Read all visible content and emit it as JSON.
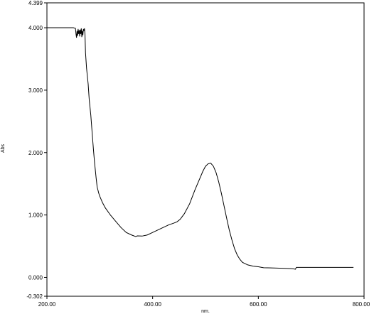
{
  "chart_data": {
    "type": "line",
    "title": "",
    "xlabel": "nm.",
    "ylabel": "Abs",
    "xlim": [
      200.0,
      800.0
    ],
    "ylim": [
      -0.302,
      4.399
    ],
    "x_ticks": [
      {
        "value": 200,
        "label": "200.00"
      },
      {
        "value": 400,
        "label": "400.00"
      },
      {
        "value": 600,
        "label": "600.00"
      },
      {
        "value": 800,
        "label": "800.00"
      }
    ],
    "y_ticks": [
      {
        "value": -0.302,
        "label": "-0.302"
      },
      {
        "value": 0.0,
        "label": "0.000"
      },
      {
        "value": 1.0,
        "label": "1.000"
      },
      {
        "value": 2.0,
        "label": "2.000"
      },
      {
        "value": 3.0,
        "label": "3.000"
      },
      {
        "value": 4.0,
        "label": "4.000"
      },
      {
        "value": 4.399,
        "label": "4.399"
      }
    ],
    "grid": false,
    "series": [
      {
        "color": "#000000",
        "points": [
          [
            200,
            4.0
          ],
          [
            250,
            4.0
          ],
          [
            254,
            3.99
          ],
          [
            255,
            3.9
          ],
          [
            256,
            3.84
          ],
          [
            257,
            3.95
          ],
          [
            258,
            3.87
          ],
          [
            259,
            3.98
          ],
          [
            260,
            3.9
          ],
          [
            261,
            3.96
          ],
          [
            262,
            3.86
          ],
          [
            263,
            3.97
          ],
          [
            264,
            3.9
          ],
          [
            265,
            3.99
          ],
          [
            266,
            3.85
          ],
          [
            267,
            3.95
          ],
          [
            268,
            3.88
          ],
          [
            269,
            3.98
          ],
          [
            270,
            3.95
          ],
          [
            271,
            3.99
          ],
          [
            272,
            3.9
          ],
          [
            273,
            3.6
          ],
          [
            275,
            3.35
          ],
          [
            278,
            3.1
          ],
          [
            280,
            2.85
          ],
          [
            283,
            2.6
          ],
          [
            285,
            2.38
          ],
          [
            288,
            2.05
          ],
          [
            290,
            1.85
          ],
          [
            293,
            1.6
          ],
          [
            295,
            1.45
          ],
          [
            298,
            1.35
          ],
          [
            300,
            1.3
          ],
          [
            305,
            1.2
          ],
          [
            310,
            1.12
          ],
          [
            320,
            1.0
          ],
          [
            330,
            0.9
          ],
          [
            340,
            0.8
          ],
          [
            350,
            0.72
          ],
          [
            360,
            0.68
          ],
          [
            368,
            0.655
          ],
          [
            371,
            0.665
          ],
          [
            380,
            0.662
          ],
          [
            390,
            0.68
          ],
          [
            400,
            0.72
          ],
          [
            410,
            0.76
          ],
          [
            420,
            0.8
          ],
          [
            430,
            0.84
          ],
          [
            440,
            0.87
          ],
          [
            446,
            0.89
          ],
          [
            452,
            0.93
          ],
          [
            460,
            1.02
          ],
          [
            470,
            1.18
          ],
          [
            480,
            1.4
          ],
          [
            490,
            1.6
          ],
          [
            495,
            1.7
          ],
          [
            500,
            1.78
          ],
          [
            505,
            1.82
          ],
          [
            510,
            1.83
          ],
          [
            515,
            1.78
          ],
          [
            520,
            1.68
          ],
          [
            525,
            1.53
          ],
          [
            530,
            1.35
          ],
          [
            535,
            1.15
          ],
          [
            540,
            0.95
          ],
          [
            545,
            0.76
          ],
          [
            550,
            0.6
          ],
          [
            555,
            0.46
          ],
          [
            560,
            0.36
          ],
          [
            565,
            0.29
          ],
          [
            570,
            0.24
          ],
          [
            580,
            0.2
          ],
          [
            590,
            0.18
          ],
          [
            600,
            0.17
          ],
          [
            610,
            0.155
          ],
          [
            630,
            0.15
          ],
          [
            650,
            0.145
          ],
          [
            660,
            0.14
          ],
          [
            668,
            0.135
          ],
          [
            670,
            0.13
          ],
          [
            672,
            0.16
          ],
          [
            680,
            0.16
          ],
          [
            700,
            0.16
          ],
          [
            750,
            0.16
          ],
          [
            780,
            0.16
          ]
        ]
      }
    ]
  }
}
